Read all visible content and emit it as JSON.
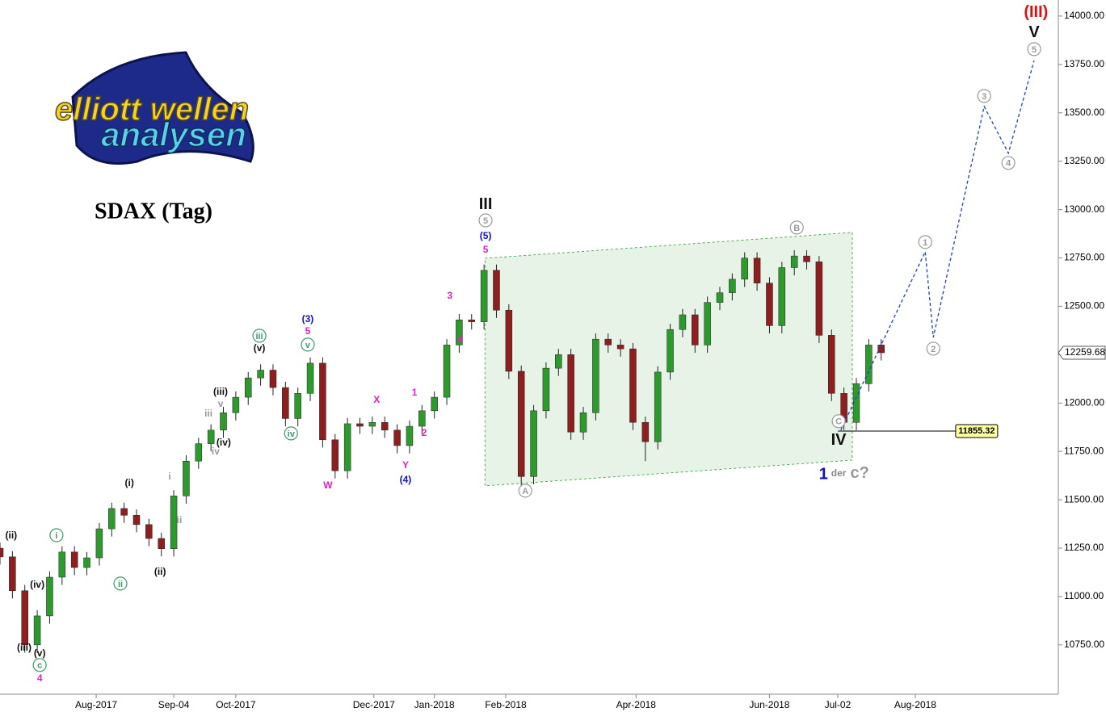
{
  "chart_data": {
    "type": "candlestick",
    "title": "SDAX (Tag)",
    "logo": {
      "line1": "elliott wellen",
      "line2": "analysen"
    },
    "up_color": "#2e9a2e",
    "down_color": "#8e1f1f",
    "xlim": [
      0,
      341.1
    ],
    "ylim": [
      10495,
      14083
    ],
    "xticks": [
      {
        "value": 31,
        "label": "Aug-2017"
      },
      {
        "value": 56,
        "label": "Sep-04"
      },
      {
        "value": 76,
        "label": "Oct-2017"
      },
      {
        "value": 120.5,
        "label": "Dec-2017"
      },
      {
        "value": 140,
        "label": "Jan-2018"
      },
      {
        "value": 163,
        "label": "Feb-2018"
      },
      {
        "value": 205,
        "label": "Apr-2018"
      },
      {
        "value": 248,
        "label": "Jun-2018"
      },
      {
        "value": 270,
        "label": "Jul-02"
      },
      {
        "value": 295,
        "label": "Aug-2018"
      }
    ],
    "yticks": [
      {
        "value": 10750,
        "label": "10750.00"
      },
      {
        "value": 11000,
        "label": "11000.00"
      },
      {
        "value": 11250,
        "label": "11250.00"
      },
      {
        "value": 11500,
        "label": "11500.00"
      },
      {
        "value": 11750,
        "label": "11750.00"
      },
      {
        "value": 12000,
        "label": "12000.00"
      },
      {
        "value": 12250,
        "label": "12250.00"
      },
      {
        "value": 12500,
        "label": "12500.00"
      },
      {
        "value": 12750,
        "label": "12750.00"
      },
      {
        "value": 13000,
        "label": "13000.00"
      },
      {
        "value": 13250,
        "label": "13250.00"
      },
      {
        "value": 13500,
        "label": "13500.00"
      },
      {
        "value": 13750,
        "label": "13750.00"
      },
      {
        "value": 14000,
        "label": "14000.00"
      }
    ],
    "x": [
      0,
      4,
      8,
      12,
      16,
      20,
      24,
      28,
      32,
      36,
      40,
      44,
      48,
      52,
      56,
      60,
      64,
      68,
      72,
      76,
      80,
      84,
      88,
      92,
      96,
      100,
      104,
      108,
      112,
      116,
      120,
      124,
      128,
      132,
      136,
      140,
      144,
      148,
      152,
      156,
      160,
      164,
      168,
      172,
      176,
      180,
      184,
      188,
      192,
      196,
      200,
      204,
      208,
      212,
      216,
      220,
      224,
      228,
      232,
      236,
      240,
      244,
      248,
      252,
      256,
      260,
      264,
      268,
      272,
      276,
      280,
      284
    ],
    "open": [
      11250,
      11205,
      11030,
      10750,
      10900,
      11100,
      11230,
      11150,
      11200,
      11350,
      11455,
      11420,
      11372,
      11300,
      11247,
      11520,
      11700,
      11790,
      11860,
      11950,
      12030,
      12130,
      12170,
      12080,
      11920,
      12050,
      12206,
      11810,
      11650,
      11893,
      11880,
      11900,
      11860,
      11780,
      11880,
      11960,
      12030,
      12300,
      12430,
      12420,
      12686,
      12480,
      12164,
      11620,
      11960,
      12180,
      12250,
      11850,
      11950,
      12330,
      12300,
      12280,
      11900,
      11800,
      12160,
      12380,
      12456,
      12300,
      12520,
      12570,
      12640,
      12749,
      12620,
      12400,
      12700,
      12760,
      12730,
      12350,
      12050,
      11900,
      12100,
      12300
    ],
    "high": [
      11280,
      11235,
      11060,
      10930,
      11130,
      11260,
      11260,
      11230,
      11380,
      11485,
      11485,
      11450,
      11402,
      11330,
      11550,
      11730,
      11820,
      11890,
      11980,
      12060,
      12160,
      12200,
      12200,
      12110,
      12080,
      12236,
      12236,
      11840,
      11923,
      11923,
      11930,
      11930,
      11890,
      11910,
      11990,
      12060,
      12330,
      12460,
      12460,
      12716,
      12716,
      12510,
      12194,
      11990,
      12210,
      12280,
      12280,
      11980,
      12360,
      12360,
      12330,
      12310,
      11930,
      12190,
      12410,
      12486,
      12486,
      12550,
      12600,
      12670,
      12779,
      12779,
      12650,
      12730,
      12790,
      12790,
      12760,
      12380,
      12080,
      12130,
      12330,
      12330
    ],
    "low": [
      11165,
      10990,
      10710,
      10710,
      10860,
      11060,
      11110,
      11110,
      11160,
      11310,
      11380,
      11332,
      11260,
      11207,
      11207,
      11480,
      11660,
      11750,
      11820,
      11910,
      11990,
      12090,
      12040,
      11880,
      11880,
      12010,
      11770,
      11610,
      11610,
      11840,
      11840,
      11820,
      11740,
      11740,
      11840,
      11920,
      11990,
      12260,
      12380,
      12380,
      12440,
      12124,
      11540,
      11580,
      11920,
      12140,
      11810,
      11810,
      11910,
      12260,
      12240,
      11860,
      11700,
      11760,
      12120,
      12340,
      12260,
      12260,
      12480,
      12530,
      12600,
      12580,
      12360,
      12360,
      12660,
      12690,
      12310,
      12010,
      11860,
      11860,
      12060,
      12220
    ],
    "close": [
      11205,
      11030,
      10750,
      10900,
      11100,
      11230,
      11150,
      11200,
      11350,
      11455,
      11420,
      11372,
      11300,
      11247,
      11520,
      11700,
      11790,
      11860,
      11950,
      12030,
      12130,
      12170,
      12080,
      11920,
      12050,
      12206,
      11810,
      11650,
      11893,
      11880,
      11900,
      11860,
      11780,
      11880,
      11960,
      12030,
      12300,
      12430,
      12420,
      12686,
      12480,
      12164,
      11620,
      11960,
      12180,
      12250,
      11850,
      11950,
      12330,
      12300,
      12280,
      11900,
      11800,
      12160,
      12380,
      12456,
      12300,
      12520,
      12570,
      12640,
      12749,
      12620,
      12400,
      12700,
      12760,
      12730,
      12350,
      12050,
      11900,
      12100,
      12300,
      12260
    ],
    "channel": {
      "x": [
        156.3,
        274.7,
        274.7,
        156.3
      ],
      "y": [
        12748,
        12882,
        11705,
        11572
      ],
      "color": "#2e9a2e"
    },
    "projection": {
      "x": [
        271,
        298.2,
        300.8,
        317.2,
        325,
        333.3
      ],
      "y": [
        11860,
        12782,
        12339,
        13533,
        13291,
        13771
      ],
      "color": "#1f3fcf"
    },
    "level": {
      "value": 11855.32,
      "x": [
        270,
        308
      ]
    },
    "last_price": 12259.68,
    "annotations": [
      {
        "text": "III",
        "x": 156.5,
        "y": 13028,
        "color": "#111111",
        "bold": true
      },
      {
        "text": "5",
        "x": 156.5,
        "y": 12944,
        "color": "#999999",
        "circled": true
      },
      {
        "text": "(5)",
        "x": 156.5,
        "y": 12865,
        "color": "#1010cc"
      },
      {
        "text": "5",
        "x": 156.5,
        "y": 12794,
        "color": "#e020c0"
      },
      {
        "text": "3",
        "x": 145,
        "y": 12556,
        "color": "#e020c0"
      },
      {
        "text": "4",
        "x": 148.2,
        "y": 12331,
        "color": "#e020c0"
      },
      {
        "text": "1",
        "x": 133.6,
        "y": 12056,
        "color": "#e020c0"
      },
      {
        "text": "2",
        "x": 136.7,
        "y": 11847,
        "color": "#e020c0"
      },
      {
        "text": "X",
        "x": 121.4,
        "y": 12018,
        "color": "#e020c0"
      },
      {
        "text": "Y",
        "x": 130.7,
        "y": 11680,
        "color": "#e020c0"
      },
      {
        "text": "W",
        "x": 105.7,
        "y": 11576,
        "color": "#e020c0"
      },
      {
        "text": "(4)",
        "x": 130.7,
        "y": 11605,
        "color": "#1010cc"
      },
      {
        "text": "(3)",
        "x": 99.2,
        "y": 12436,
        "color": "#1010cc"
      },
      {
        "text": "5",
        "x": 99.2,
        "y": 12373,
        "color": "#e020c0"
      },
      {
        "text": "v",
        "x": 99.2,
        "y": 12302,
        "color": "#3a9a6a",
        "circled": true
      },
      {
        "text": "iii",
        "x": 83.6,
        "y": 12348,
        "color": "#3a9a6a",
        "circled": true
      },
      {
        "text": "(v)",
        "x": 83.6,
        "y": 12285,
        "color": "#111111"
      },
      {
        "text": "iv",
        "x": 93.8,
        "y": 11843,
        "color": "#3a9a6a",
        "circled": true
      },
      {
        "text": "(iii)",
        "x": 71.1,
        "y": 12060,
        "color": "#111111"
      },
      {
        "text": "v",
        "x": 71.1,
        "y": 11997,
        "color": "#999999"
      },
      {
        "text": "iii",
        "x": 67.2,
        "y": 11947,
        "color": "#999999"
      },
      {
        "text": "(iv)",
        "x": 72.1,
        "y": 11797,
        "color": "#111111"
      },
      {
        "text": "iv",
        "x": 69.5,
        "y": 11751,
        "color": "#999999"
      },
      {
        "text": "i",
        "x": 54.7,
        "y": 11622,
        "color": "#999999"
      },
      {
        "text": "ii",
        "x": 57.8,
        "y": 11397,
        "color": "#999999"
      },
      {
        "text": "(i)",
        "x": 41.7,
        "y": 11589,
        "color": "#111111"
      },
      {
        "text": "(ii)",
        "x": 51.6,
        "y": 11130,
        "color": "#111111"
      },
      {
        "text": "ii",
        "x": 38.8,
        "y": 11067,
        "color": "#3a9a6a",
        "circled": true
      },
      {
        "text": "i",
        "x": 18.2,
        "y": 11317,
        "color": "#3a9a6a",
        "circled": true
      },
      {
        "text": "(ii)",
        "x": 3.6,
        "y": 11317,
        "color": "#111111"
      },
      {
        "text": "(iv)",
        "x": 12,
        "y": 11063,
        "color": "#111111"
      },
      {
        "text": "(iii)",
        "x": 7.8,
        "y": 10737,
        "color": "#111111"
      },
      {
        "text": "(v)",
        "x": 12.8,
        "y": 10708,
        "color": "#111111"
      },
      {
        "text": "c",
        "x": 12.8,
        "y": 10646,
        "color": "#3a9a6a",
        "circled": true
      },
      {
        "text": "4",
        "x": 12.8,
        "y": 10579,
        "color": "#e020c0"
      },
      {
        "text": "A",
        "x": 169.3,
        "y": 11547,
        "color": "#999999",
        "circled": true
      },
      {
        "text": "B",
        "x": 256.8,
        "y": 12907,
        "color": "#999999",
        "circled": true
      },
      {
        "text": "C",
        "x": 270.3,
        "y": 11906,
        "color": "#999999",
        "circled": true
      },
      {
        "text": "IV",
        "x": 270.3,
        "y": 11810,
        "color": "#111111",
        "bold": true
      },
      {
        "text": "1",
        "x": 265.4,
        "y": 11634,
        "color": "#1010cc",
        "bold": true
      },
      {
        "text": "der",
        "x": 270.3,
        "y": 11639,
        "color": "#888888"
      },
      {
        "text": "c?",
        "x": 277.1,
        "y": 11639,
        "color": "#999999",
        "bold": true
      },
      {
        "text": "(III)",
        "x": 333.9,
        "y": 14021,
        "color": "#e01010",
        "bold": true
      },
      {
        "text": "V",
        "x": 333.3,
        "y": 13917,
        "color": "#111111",
        "bold": true
      },
      {
        "text": "1",
        "x": 298.2,
        "y": 12832,
        "color": "#999999",
        "circled": true
      },
      {
        "text": "2",
        "x": 300.8,
        "y": 12281,
        "color": "#999999",
        "circled": true
      },
      {
        "text": "3",
        "x": 317.2,
        "y": 13587,
        "color": "#999999",
        "circled": true
      },
      {
        "text": "4",
        "x": 325,
        "y": 13241,
        "color": "#999999",
        "circled": true
      },
      {
        "text": "5",
        "x": 333.3,
        "y": 13829,
        "color": "#999999",
        "circled": true
      }
    ]
  }
}
